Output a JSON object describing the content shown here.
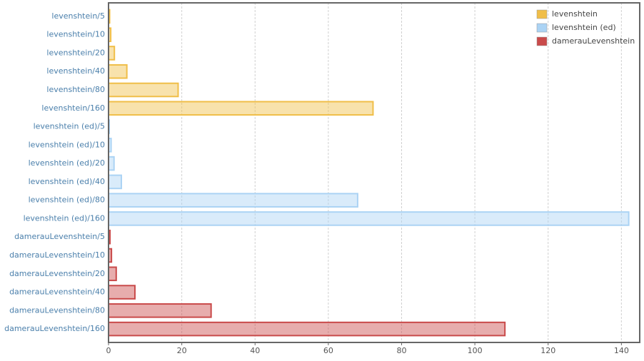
{
  "chart_data": {
    "type": "bar",
    "orientation": "horizontal",
    "categories": [
      "levenshtein/5",
      "levenshtein/10",
      "levenshtein/20",
      "levenshtein/40",
      "levenshtein/80",
      "levenshtein/160",
      "levenshtein (ed)/5",
      "levenshtein (ed)/10",
      "levenshtein (ed)/20",
      "levenshtein (ed)/40",
      "levenshtein (ed)/80",
      "levenshtein (ed)/160",
      "damerauLevenshtein/5",
      "damerauLevenshtein/10",
      "damerauLevenshtein/20",
      "damerauLevenshtein/40",
      "damerauLevenshtein/80",
      "damerauLevenshtein/160"
    ],
    "series": [
      {
        "name": "levenshtein",
        "color": "#f0be48",
        "values": [
          0.3,
          0.6,
          1.6,
          5,
          19,
          72.2,
          null,
          null,
          null,
          null,
          null,
          null,
          null,
          null,
          null,
          null,
          null,
          null
        ]
      },
      {
        "name": "levenshtein (ed)",
        "color": "#abd3f4",
        "values": [
          null,
          null,
          null,
          null,
          null,
          null,
          0.2,
          0.7,
          1.5,
          3.5,
          68,
          142,
          null,
          null,
          null,
          null,
          null,
          null
        ]
      },
      {
        "name": "damerauLevenshtein",
        "color": "#c94a4a",
        "values": [
          null,
          null,
          null,
          null,
          null,
          null,
          null,
          null,
          null,
          null,
          null,
          null,
          0.4,
          0.8,
          2.1,
          7.2,
          28,
          108.2
        ]
      }
    ],
    "xlim": [
      0,
      145
    ],
    "xticks": [
      0,
      20,
      40,
      60,
      80,
      100,
      120,
      140
    ],
    "grid": true,
    "legend": "top-right"
  }
}
